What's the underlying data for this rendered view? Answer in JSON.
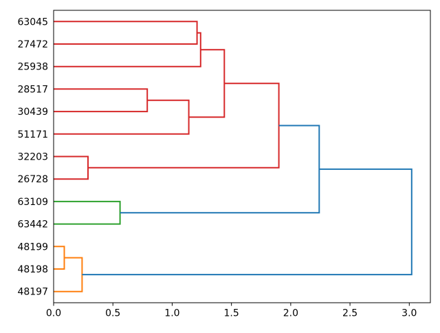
{
  "figure": {
    "background": "#ffffff",
    "title": ""
  },
  "chart_data": {
    "type": "dendrogram",
    "orientation": "labels-left-root-right",
    "title": "",
    "xlabel": "",
    "ylabel": "",
    "grid": false,
    "legend": null,
    "xlim": [
      0,
      3.178
    ],
    "ylim": [
      0,
      130
    ],
    "x_tick_values": [
      0.0,
      0.5,
      1.0,
      1.5,
      2.0,
      2.5,
      3.0
    ],
    "x_tick_labels": [
      "0.0",
      "0.5",
      "1.0",
      "1.5",
      "2.0",
      "2.5",
      "3.0"
    ],
    "axis_color": "#000000",
    "line_width": 2,
    "cluster_colors": {
      "red": "#d62728",
      "green": "#2ca02c",
      "orange": "#ff7f0e",
      "above_threshold_blue": "#1f77b4"
    },
    "leaves": [
      {
        "label": "63045",
        "pos": 125
      },
      {
        "label": "27472",
        "pos": 115
      },
      {
        "label": "25938",
        "pos": 105
      },
      {
        "label": "28517",
        "pos": 95
      },
      {
        "label": "30439",
        "pos": 85
      },
      {
        "label": "51171",
        "pos": 75
      },
      {
        "label": "32203",
        "pos": 65
      },
      {
        "label": "26728",
        "pos": 55
      },
      {
        "label": "63109",
        "pos": 45
      },
      {
        "label": "63442",
        "pos": 35
      },
      {
        "label": "48199",
        "pos": 25
      },
      {
        "label": "48198",
        "pos": 15
      },
      {
        "label": "48197",
        "pos": 5
      }
    ],
    "links": [
      {
        "id": "m1",
        "members": "63045+27472",
        "distance": 1.21,
        "color": "#d62728",
        "c1": {
          "x": 0,
          "y": 125
        },
        "c2": {
          "x": 0,
          "y": 115
        }
      },
      {
        "id": "m2",
        "members": "(63045,27472)+25938",
        "distance": 1.24,
        "color": "#d62728",
        "c1": {
          "x": 1.21,
          "y": 120
        },
        "c2": {
          "x": 0,
          "y": 105
        }
      },
      {
        "id": "m3",
        "members": "28517+30439",
        "distance": 0.79,
        "color": "#d62728",
        "c1": {
          "x": 0,
          "y": 95
        },
        "c2": {
          "x": 0,
          "y": 85
        }
      },
      {
        "id": "m4",
        "members": "(28517,30439)+51171",
        "distance": 1.14,
        "color": "#d62728",
        "c1": {
          "x": 0.79,
          "y": 90
        },
        "c2": {
          "x": 0,
          "y": 75
        }
      },
      {
        "id": "m5",
        "members": "32203+26728",
        "distance": 0.29,
        "color": "#d62728",
        "c1": {
          "x": 0,
          "y": 65
        },
        "c2": {
          "x": 0,
          "y": 55
        }
      },
      {
        "id": "m6",
        "members": "top3+mid3",
        "distance": 1.44,
        "color": "#d62728",
        "c1": {
          "x": 1.24,
          "y": 112.5
        },
        "c2": {
          "x": 1.14,
          "y": 82.5
        }
      },
      {
        "id": "m7",
        "members": "red6+(32203,26728)",
        "distance": 1.9,
        "color": "#d62728",
        "c1": {
          "x": 1.44,
          "y": 97.5
        },
        "c2": {
          "x": 0.29,
          "y": 60
        }
      },
      {
        "id": "m8",
        "members": "63109+63442",
        "distance": 0.56,
        "color": "#2ca02c",
        "c1": {
          "x": 0,
          "y": 45
        },
        "c2": {
          "x": 0,
          "y": 35
        }
      },
      {
        "id": "m9",
        "members": "red-cluster+green-cluster",
        "distance": 2.24,
        "color": "#1f77b4",
        "c1": {
          "x": 1.9,
          "y": 78.75
        },
        "c2": {
          "x": 0.56,
          "y": 40
        }
      },
      {
        "id": "m10",
        "members": "48199+48198",
        "distance": 0.09,
        "color": "#ff7f0e",
        "c1": {
          "x": 0,
          "y": 25
        },
        "c2": {
          "x": 0,
          "y": 15
        }
      },
      {
        "id": "m11",
        "members": "(48199,48198)+48197",
        "distance": 0.24,
        "color": "#ff7f0e",
        "c1": {
          "x": 0.09,
          "y": 20
        },
        "c2": {
          "x": 0,
          "y": 5
        }
      },
      {
        "id": "m12",
        "members": "root",
        "distance": 3.02,
        "color": "#1f77b4",
        "c1": {
          "x": 2.24,
          "y": 59.375
        },
        "c2": {
          "x": 0.24,
          "y": 12.5
        }
      }
    ]
  }
}
